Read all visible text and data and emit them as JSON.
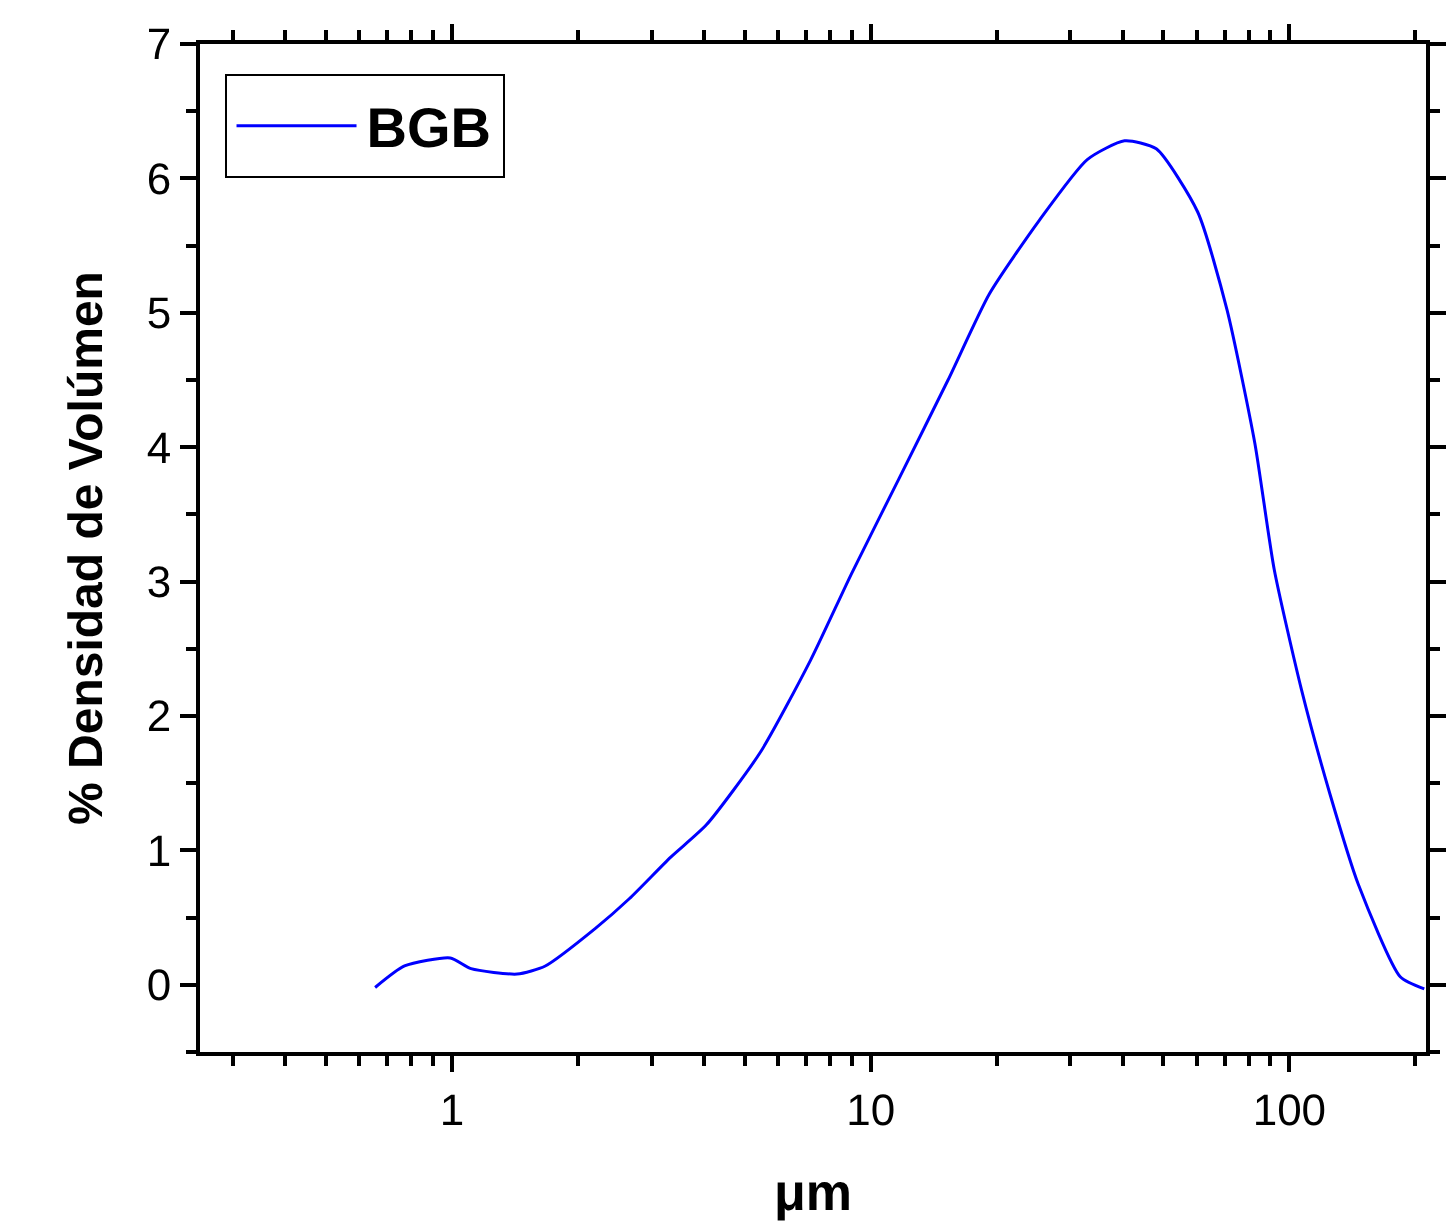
{
  "chart_data": {
    "type": "line",
    "xlabel": "μm",
    "ylabel": "% Densidad de Volúmen",
    "log": "x",
    "xlim": [
      0.25,
      212
    ],
    "xticks": [
      1,
      10,
      100
    ],
    "ylim": [
      -0.5,
      7
    ],
    "yticks": [
      0,
      1,
      2,
      3,
      4,
      5,
      6,
      7
    ],
    "legend": "top left",
    "marker": "none",
    "line_style": "solid",
    "series": [
      {
        "name": "BGB",
        "color": "#0000ff",
        "x": [
          0.655,
          0.77,
          0.99,
          1.11,
          1.43,
          1.67,
          2.2,
          2.65,
          3.33,
          4.05,
          5.45,
          7.17,
          9.0,
          11.7,
          15.3,
          19.2,
          25.3,
          32.9,
          40.4,
          48.1,
          60.4,
          71.0,
          82.7,
          92.0,
          106.8,
          125,
          146,
          184,
          210
        ],
        "values": [
          -0.02,
          0.14,
          0.2,
          0.12,
          0.08,
          0.14,
          0.42,
          0.64,
          0.95,
          1.19,
          1.73,
          2.41,
          3.06,
          3.77,
          4.5,
          5.14,
          5.69,
          6.14,
          6.28,
          6.22,
          5.75,
          5.02,
          4.03,
          3.09,
          2.2,
          1.42,
          0.75,
          0.06,
          -0.03
        ]
      }
    ]
  }
}
